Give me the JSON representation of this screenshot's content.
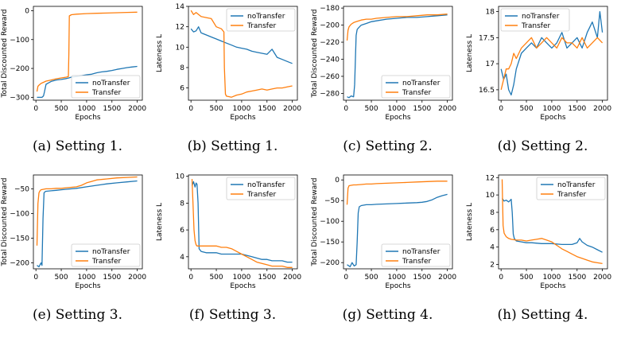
{
  "colors": {
    "noTransfer": "#1f77b4",
    "Transfer": "#ff7f0e"
  },
  "chart_data": [
    {
      "id": "a",
      "type": "line",
      "caption": "(a) Setting 1.",
      "xlabel": "Epochs",
      "ylabel": "Total Discounted Reward",
      "xlim": [
        -50,
        2100
      ],
      "ylim": [
        -310,
        15
      ],
      "xticks": [
        0,
        500,
        1000,
        1500,
        2000
      ],
      "yticks": [
        -300,
        -200,
        -100,
        0
      ],
      "legend": "bottom-right",
      "grid": false,
      "series": [
        {
          "name": "noTransfer",
          "x": [
            20,
            80,
            120,
            150,
            170,
            200,
            250,
            300,
            400,
            500,
            600,
            650,
            700,
            800,
            900,
            1000,
            1100,
            1200,
            1300,
            1400,
            1500,
            1600,
            1700,
            1800,
            1900,
            2000
          ],
          "y": [
            -300,
            -300,
            -300,
            -295,
            -280,
            -255,
            -250,
            -245,
            -240,
            -238,
            -235,
            -233,
            -230,
            -228,
            -225,
            -222,
            -220,
            -215,
            -212,
            -210,
            -207,
            -203,
            -200,
            -197,
            -195,
            -193
          ]
        },
        {
          "name": "Transfer",
          "x": [
            20,
            40,
            60,
            100,
            150,
            200,
            300,
            400,
            500,
            600,
            640,
            650,
            660,
            700,
            800,
            1000,
            1200,
            1400,
            1600,
            1800,
            2000
          ],
          "y": [
            -280,
            -262,
            -258,
            -252,
            -248,
            -244,
            -240,
            -236,
            -233,
            -230,
            -228,
            -150,
            -18,
            -14,
            -12,
            -10,
            -9,
            -8,
            -7,
            -6,
            -5
          ]
        }
      ]
    },
    {
      "id": "b",
      "type": "line",
      "caption": "(b) Setting 1.",
      "xlabel": "Epochs",
      "ylabel": "Lateness L",
      "xlim": [
        -50,
        2100
      ],
      "ylim": [
        4.8,
        14.0
      ],
      "xticks": [
        0,
        500,
        1000,
        1500,
        2000
      ],
      "yticks": [
        6,
        8,
        10,
        12,
        14
      ],
      "legend": "top-right",
      "grid": false,
      "series": [
        {
          "name": "noTransfer",
          "x": [
            0,
            50,
            100,
            150,
            200,
            300,
            400,
            500,
            600,
            700,
            800,
            900,
            1000,
            1100,
            1200,
            1300,
            1400,
            1500,
            1600,
            1700,
            1800,
            1900,
            2000
          ],
          "y": [
            11.8,
            11.5,
            11.6,
            12.0,
            11.4,
            11.2,
            11.0,
            10.8,
            10.6,
            10.4,
            10.2,
            10.0,
            9.9,
            9.8,
            9.6,
            9.5,
            9.4,
            9.3,
            9.8,
            9.0,
            8.8,
            8.6,
            8.4
          ]
        },
        {
          "name": "Transfer",
          "x": [
            0,
            50,
            100,
            200,
            300,
            400,
            500,
            600,
            650,
            660,
            680,
            700,
            800,
            900,
            1000,
            1100,
            1200,
            1300,
            1400,
            1500,
            1600,
            1700,
            1800,
            1900,
            2000
          ],
          "y": [
            13.6,
            13.2,
            13.4,
            13.0,
            12.9,
            12.8,
            12.0,
            11.8,
            11.5,
            8.0,
            5.4,
            5.2,
            5.1,
            5.3,
            5.4,
            5.6,
            5.7,
            5.8,
            5.9,
            5.8,
            5.9,
            6.0,
            6.0,
            6.1,
            6.2
          ]
        }
      ]
    },
    {
      "id": "c",
      "type": "line",
      "caption": "(c) Setting 2.",
      "xlabel": "Epochs",
      "ylabel": "Total Discounted Reward",
      "xlim": [
        -50,
        2100
      ],
      "ylim": [
        -288,
        -178
      ],
      "xticks": [
        0,
        500,
        1000,
        1500,
        2000
      ],
      "yticks": [
        -280,
        -260,
        -240,
        -220,
        -200,
        -180
      ],
      "legend": "bottom-right",
      "grid": false,
      "series": [
        {
          "name": "noTransfer",
          "x": [
            20,
            60,
            100,
            150,
            170,
            190,
            200,
            220,
            250,
            300,
            400,
            500,
            600,
            800,
            1000,
            1200,
            1400,
            1600,
            1800,
            2000
          ],
          "y": [
            -284,
            -285,
            -283,
            -284,
            -270,
            -230,
            -212,
            -205,
            -203,
            -200,
            -198,
            -196,
            -195,
            -193,
            -192,
            -191,
            -191,
            -190,
            -189,
            -188
          ]
        },
        {
          "name": "Transfer",
          "x": [
            20,
            40,
            60,
            100,
            150,
            200,
            300,
            400,
            500,
            600,
            800,
            1000,
            1200,
            1400,
            1600,
            1800,
            2000
          ],
          "y": [
            -218,
            -206,
            -202,
            -199,
            -197,
            -196,
            -194,
            -193,
            -193,
            -192,
            -191,
            -190,
            -190,
            -189,
            -188,
            -188,
            -187
          ]
        }
      ]
    },
    {
      "id": "d",
      "type": "line",
      "caption": "(d) Setting 2.",
      "xlabel": "Epochs",
      "ylabel": "Lateness L",
      "xlim": [
        -50,
        2100
      ],
      "ylim": [
        16.3,
        18.1
      ],
      "xticks": [
        0,
        500,
        1000,
        1500,
        2000
      ],
      "yticks": [
        16.5,
        17.0,
        17.5,
        18.0
      ],
      "legend": "top-left",
      "grid": false,
      "series": [
        {
          "name": "noTransfer",
          "x": [
            0,
            50,
            100,
            150,
            200,
            250,
            300,
            400,
            500,
            600,
            700,
            800,
            900,
            1000,
            1100,
            1200,
            1300,
            1400,
            1500,
            1600,
            1700,
            1800,
            1900,
            1950,
            2000
          ],
          "y": [
            16.9,
            16.7,
            16.8,
            16.5,
            16.4,
            16.6,
            16.9,
            17.2,
            17.3,
            17.4,
            17.3,
            17.5,
            17.4,
            17.3,
            17.4,
            17.6,
            17.3,
            17.4,
            17.5,
            17.3,
            17.6,
            17.8,
            17.5,
            18.0,
            17.6
          ]
        },
        {
          "name": "Transfer",
          "x": [
            0,
            50,
            100,
            150,
            200,
            250,
            300,
            400,
            500,
            600,
            700,
            800,
            900,
            1000,
            1100,
            1200,
            1300,
            1400,
            1500,
            1600,
            1700,
            1800,
            1900,
            2000
          ],
          "y": [
            16.5,
            16.7,
            16.9,
            16.9,
            17.0,
            17.2,
            17.1,
            17.3,
            17.4,
            17.5,
            17.3,
            17.4,
            17.5,
            17.4,
            17.3,
            17.5,
            17.4,
            17.4,
            17.3,
            17.5,
            17.3,
            17.4,
            17.5,
            17.4
          ]
        }
      ]
    },
    {
      "id": "e",
      "type": "line",
      "caption": "(e) Setting 3.",
      "xlabel": "Epochs",
      "ylabel": "Total Discounted Reward",
      "xlim": [
        -50,
        2100
      ],
      "ylim": [
        -212,
        -22
      ],
      "xticks": [
        0,
        500,
        1000,
        1500,
        2000
      ],
      "yticks": [
        -200,
        -150,
        -100,
        -50
      ],
      "legend": "bottom-right",
      "grid": false,
      "series": [
        {
          "name": "noTransfer",
          "x": [
            20,
            60,
            100,
            120,
            140,
            160,
            180,
            200,
            300,
            400,
            500,
            600,
            800,
            1000,
            1200,
            1400,
            1600,
            1800,
            2000
          ],
          "y": [
            -205,
            -208,
            -200,
            -205,
            -110,
            -58,
            -56,
            -55,
            -54,
            -53,
            -52,
            -51,
            -49,
            -46,
            -43,
            -40,
            -38,
            -36,
            -34
          ]
        },
        {
          "name": "Transfer",
          "x": [
            20,
            40,
            60,
            80,
            100,
            150,
            200,
            300,
            400,
            500,
            600,
            700,
            800,
            900,
            1000,
            1100,
            1200,
            1400,
            1600,
            1800,
            2000
          ],
          "y": [
            -165,
            -80,
            -58,
            -54,
            -52,
            -51,
            -50,
            -50,
            -49,
            -49,
            -48,
            -47,
            -46,
            -43,
            -38,
            -35,
            -32,
            -30,
            -28,
            -27,
            -26
          ]
        }
      ]
    },
    {
      "id": "f",
      "type": "line",
      "caption": "(f) Setting 3.",
      "xlabel": "Epochs",
      "ylabel": "Lateness L",
      "xlim": [
        -50,
        2100
      ],
      "ylim": [
        3.1,
        10.1
      ],
      "xticks": [
        0,
        500,
        1000,
        1500,
        2000
      ],
      "yticks": [
        4,
        6,
        8,
        10
      ],
      "legend": "top-right",
      "grid": false,
      "series": [
        {
          "name": "noTransfer",
          "x": [
            20,
            50,
            80,
            100,
            120,
            140,
            160,
            200,
            300,
            400,
            500,
            600,
            700,
            800,
            900,
            1000,
            1100,
            1200,
            1300,
            1400,
            1500,
            1600,
            1700,
            1800,
            1900,
            2000
          ],
          "y": [
            9.3,
            9.6,
            9.2,
            9.5,
            9.4,
            8.0,
            4.6,
            4.4,
            4.3,
            4.3,
            4.3,
            4.2,
            4.2,
            4.2,
            4.2,
            4.2,
            4.1,
            4.0,
            3.9,
            3.8,
            3.8,
            3.7,
            3.7,
            3.7,
            3.6,
            3.6
          ]
        },
        {
          "name": "Transfer",
          "x": [
            20,
            40,
            60,
            80,
            100,
            120,
            200,
            300,
            400,
            500,
            600,
            700,
            800,
            900,
            1000,
            1100,
            1200,
            1300,
            1400,
            1500,
            1600,
            1700,
            1800,
            1900,
            2000
          ],
          "y": [
            9.8,
            8.0,
            6.0,
            5.2,
            4.9,
            4.8,
            4.8,
            4.8,
            4.8,
            4.8,
            4.7,
            4.7,
            4.6,
            4.4,
            4.2,
            4.0,
            3.8,
            3.6,
            3.5,
            3.4,
            3.3,
            3.3,
            3.3,
            3.2,
            3.2
          ]
        }
      ]
    },
    {
      "id": "g",
      "type": "line",
      "caption": "(g) Setting 4.",
      "xlabel": "Epochs",
      "ylabel": "Total Discounted Reward",
      "xlim": [
        -50,
        2100
      ],
      "ylim": [
        -215,
        12
      ],
      "xticks": [
        0,
        500,
        1000,
        1500,
        2000
      ],
      "yticks": [
        -200,
        -150,
        -100,
        -50,
        0
      ],
      "legend": "bottom-right",
      "grid": false,
      "series": [
        {
          "name": "noTransfer",
          "x": [
            20,
            80,
            120,
            160,
            200,
            220,
            240,
            260,
            300,
            400,
            500,
            600,
            800,
            1000,
            1200,
            1400,
            1500,
            1600,
            1700,
            1800,
            1900,
            2000
          ],
          "y": [
            -205,
            -210,
            -200,
            -208,
            -205,
            -150,
            -80,
            -65,
            -62,
            -60,
            -60,
            -59,
            -58,
            -57,
            -56,
            -55,
            -54,
            -52,
            -48,
            -42,
            -38,
            -35
          ]
        },
        {
          "name": "Transfer",
          "x": [
            20,
            40,
            60,
            100,
            150,
            200,
            300,
            400,
            500,
            600,
            800,
            1000,
            1200,
            1400,
            1600,
            1800,
            2000
          ],
          "y": [
            -60,
            -20,
            -14,
            -13,
            -12,
            -12,
            -11,
            -10,
            -10,
            -9,
            -8,
            -7,
            -6,
            -5,
            -4,
            -3,
            -3
          ]
        }
      ]
    },
    {
      "id": "h",
      "type": "line",
      "caption": "(h) Setting 4.",
      "xlabel": "Epochs",
      "ylabel": "Lateness L",
      "xlim": [
        -50,
        2100
      ],
      "ylim": [
        1.5,
        12.3
      ],
      "xticks": [
        0,
        500,
        1000,
        1500,
        2000
      ],
      "yticks": [
        2,
        4,
        6,
        8,
        10,
        12
      ],
      "legend": "top-right",
      "grid": false,
      "series": [
        {
          "name": "noTransfer",
          "x": [
            20,
            60,
            100,
            150,
            200,
            220,
            240,
            260,
            300,
            400,
            500,
            600,
            800,
            1000,
            1200,
            1400,
            1500,
            1550,
            1600,
            1700,
            1800,
            1900,
            2000
          ],
          "y": [
            9.6,
            9.3,
            9.4,
            9.2,
            9.5,
            8.0,
            5.5,
            5.0,
            4.7,
            4.6,
            4.5,
            4.5,
            4.4,
            4.4,
            4.3,
            4.3,
            4.5,
            5.0,
            4.6,
            4.2,
            4.0,
            3.7,
            3.4
          ]
        },
        {
          "name": "Transfer",
          "x": [
            20,
            40,
            60,
            80,
            100,
            150,
            200,
            300,
            400,
            500,
            600,
            700,
            800,
            900,
            1000,
            1100,
            1200,
            1300,
            1400,
            1500,
            1600,
            1700,
            1800,
            1900,
            2000
          ],
          "y": [
            11.8,
            6.5,
            5.6,
            5.4,
            5.2,
            5.0,
            4.9,
            4.8,
            4.8,
            4.7,
            4.8,
            4.9,
            5.0,
            4.8,
            4.6,
            4.2,
            3.8,
            3.5,
            3.2,
            2.9,
            2.7,
            2.5,
            2.3,
            2.2,
            2.1
          ]
        }
      ]
    }
  ]
}
